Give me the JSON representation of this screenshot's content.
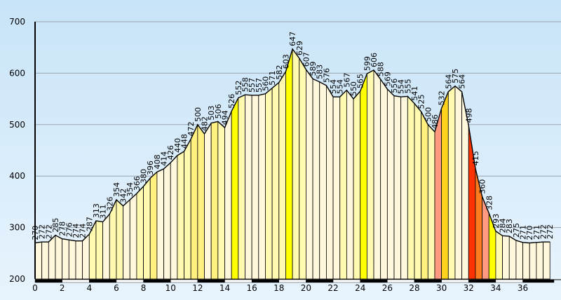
{
  "chart_data": {
    "type": "area",
    "title": "",
    "xlabel": "",
    "ylabel": "",
    "xlim": [
      0,
      38.3
    ],
    "ylim": [
      200,
      700
    ],
    "yticks": [
      200,
      300,
      400,
      500,
      600,
      700
    ],
    "xticks": [
      0,
      2,
      4,
      6,
      8,
      10,
      12,
      14,
      16,
      18,
      20,
      22,
      24,
      26,
      28,
      30,
      32,
      34,
      36
    ],
    "grid": "horizontal",
    "colors": {
      "bg_top": "#c8e4f8",
      "bg_bottom": "#e8f4fd",
      "grid": "#9aa4ae",
      "axis": "#000000",
      "outline": "#000000",
      "band": [
        "#fff8dc",
        "#fffab0",
        "#fff080",
        "#ffff00",
        "#ffd21e",
        "#ff9980",
        "#ff7d1e",
        "#ff3300"
      ]
    },
    "x": [
      0,
      0.5,
      1,
      1.5,
      2,
      2.5,
      3,
      3.5,
      4,
      4.5,
      5,
      5.5,
      6,
      6.5,
      7,
      7.5,
      8,
      8.5,
      9,
      9.5,
      10,
      10.5,
      11,
      11.5,
      12,
      12.5,
      13,
      13.5,
      14,
      14.5,
      15,
      15.5,
      16,
      16.5,
      17,
      17.5,
      18,
      18.5,
      19,
      19.5,
      20,
      20.5,
      21,
      21.5,
      22,
      22.5,
      23,
      23.5,
      24,
      24.5,
      25,
      25.5,
      26,
      26.5,
      27,
      27.5,
      28,
      28.5,
      29,
      29.5,
      30,
      30.5,
      31,
      31.5,
      32,
      32.5,
      33,
      33.5,
      34,
      34.5,
      35,
      35.5,
      36,
      36.5,
      37,
      37.5,
      38
    ],
    "y": [
      270,
      272,
      272,
      285,
      278,
      276,
      274,
      274,
      287,
      313,
      311,
      326,
      354,
      342,
      354,
      366,
      380,
      396,
      408,
      414,
      426,
      440,
      448,
      472,
      500,
      482,
      503,
      506,
      494,
      526,
      552,
      558,
      557,
      557,
      560,
      571,
      582,
      603,
      647,
      629,
      607,
      589,
      583,
      576,
      554,
      554,
      567,
      550,
      565,
      599,
      606,
      588,
      569,
      556,
      554,
      555,
      541,
      525,
      500,
      486,
      532,
      564,
      575,
      564,
      498,
      415,
      360,
      328,
      293,
      284,
      283,
      275,
      271,
      270,
      271,
      272,
      272
    ],
    "bands": [
      0,
      0,
      0,
      0,
      0,
      0,
      0,
      0,
      1,
      1,
      0,
      1,
      1,
      0,
      0,
      1,
      1,
      2,
      0,
      0,
      0,
      1,
      1,
      2,
      2,
      0,
      2,
      1,
      0,
      3,
      1,
      0,
      0,
      0,
      1,
      1,
      1,
      3,
      1,
      1,
      0,
      0,
      0,
      0,
      0,
      1,
      0,
      1,
      3,
      1,
      0,
      0,
      0,
      0,
      0,
      1,
      1,
      2,
      1,
      5,
      4,
      1,
      0,
      0,
      7,
      6,
      5,
      3,
      1,
      0,
      0,
      0,
      0,
      0,
      0,
      0
    ],
    "labels": [
      "270",
      "272",
      "272",
      "285",
      "278",
      "276",
      "274",
      "274",
      "287",
      "313",
      "311",
      "326",
      "354",
      "342",
      "354",
      "366",
      "380",
      "396",
      "408",
      "414",
      "426",
      "440",
      "448",
      "472",
      "500",
      "482",
      "503",
      "506",
      "494",
      "526",
      "552",
      "558",
      "557",
      "557",
      "560",
      "571",
      "582",
      "603",
      "647",
      "629",
      "607",
      "589",
      "583",
      "576",
      "554",
      "554",
      "567",
      "550",
      "565",
      "599",
      "606",
      "588",
      "569",
      "556",
      "554",
      "555",
      "541",
      "525",
      "500",
      "486",
      "532",
      "564",
      "575",
      "564",
      "498",
      "415",
      "360",
      "328",
      "293",
      "284",
      "283",
      "275",
      "271",
      "270",
      "271",
      "272",
      "272"
    ]
  }
}
